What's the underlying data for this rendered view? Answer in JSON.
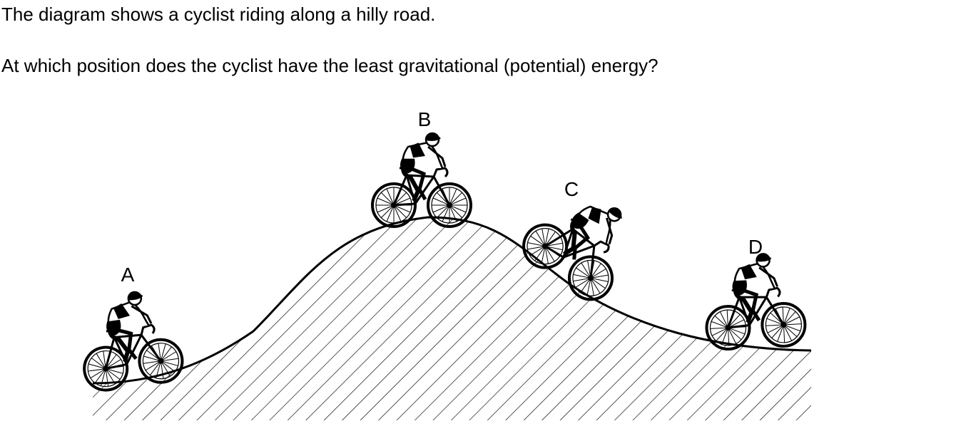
{
  "question": {
    "intro": "The diagram shows a cyclist riding along a hilly road.",
    "prompt": "At which position does the cyclist have the least gravitational (potential) energy?"
  },
  "diagram": {
    "positions": [
      {
        "id": "A",
        "label": "A"
      },
      {
        "id": "B",
        "label": "B"
      },
      {
        "id": "C",
        "label": "C"
      },
      {
        "id": "D",
        "label": "D"
      }
    ]
  }
}
